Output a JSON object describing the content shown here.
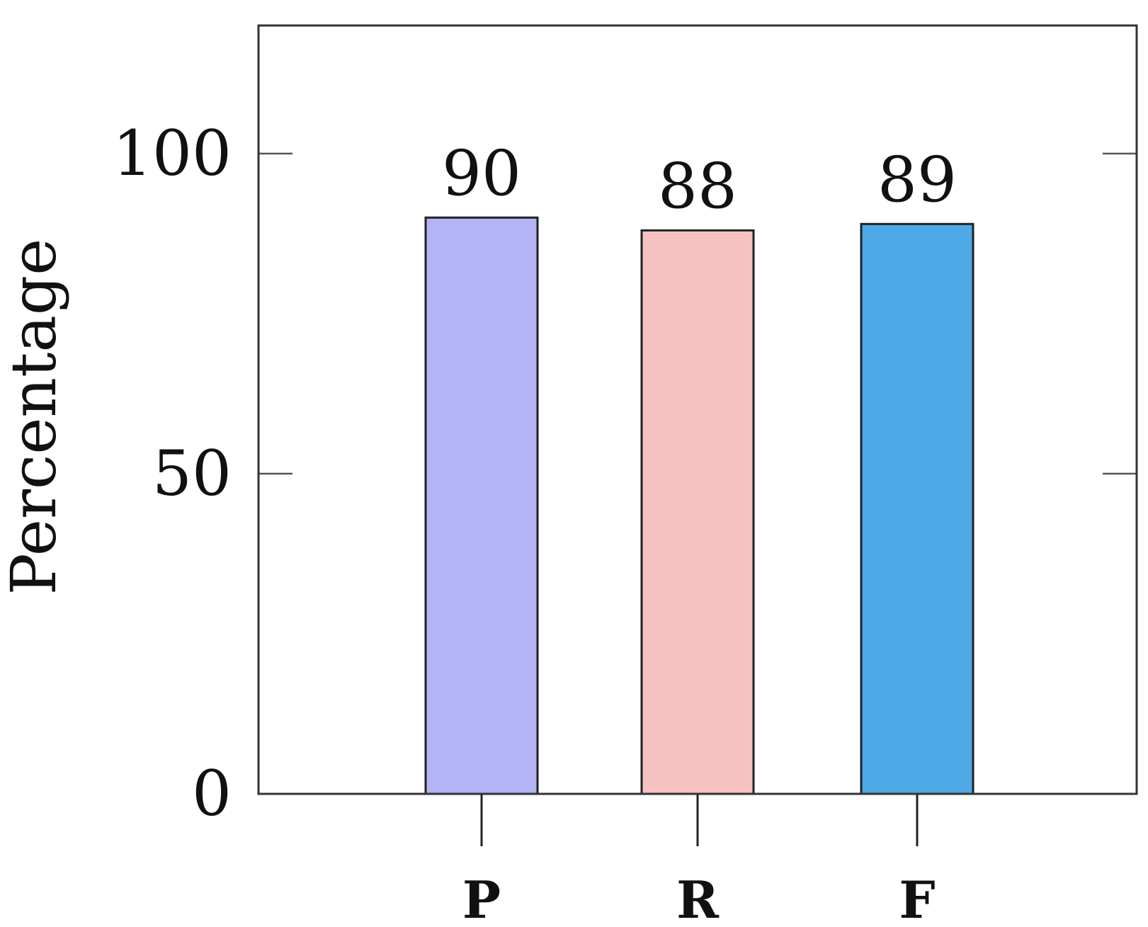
{
  "chart_data": {
    "type": "bar",
    "title": "",
    "xlabel": "",
    "ylabel": "Percentage",
    "categories": [
      "P",
      "R",
      "F"
    ],
    "values": [
      90,
      88,
      89
    ],
    "data_labels": [
      "90",
      "88",
      "89"
    ],
    "bar_colors": [
      "#b3b3f5",
      "#f5c2c0",
      "#4ea9e6"
    ],
    "ylim": [
      0,
      120
    ],
    "yticks": [
      0,
      50,
      100
    ],
    "ytick_labels": [
      "0",
      "50",
      "100"
    ],
    "grid": false,
    "legend": "none"
  }
}
